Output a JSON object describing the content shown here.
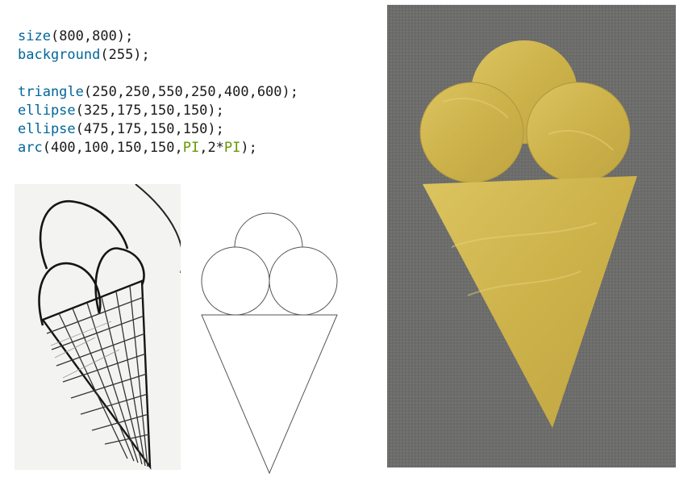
{
  "code": {
    "lines": [
      [
        {
          "t": "size",
          "c": "fn"
        },
        {
          "t": "(800,800);",
          "c": "plain"
        }
      ],
      [
        {
          "t": "background",
          "c": "fn"
        },
        {
          "t": "(255);",
          "c": "plain"
        }
      ],
      [],
      [
        {
          "t": "triangle",
          "c": "fn"
        },
        {
          "t": "(250,250,550,250,400,600);",
          "c": "plain"
        }
      ],
      [
        {
          "t": "ellipse",
          "c": "fn"
        },
        {
          "t": "(325,175,150,150);",
          "c": "plain"
        }
      ],
      [
        {
          "t": "ellipse",
          "c": "fn"
        },
        {
          "t": "(475,175,150,150);",
          "c": "plain"
        }
      ],
      [
        {
          "t": "arc",
          "c": "fn"
        },
        {
          "t": "(400,100,150,150,",
          "c": "plain"
        },
        {
          "t": "PI",
          "c": "const"
        },
        {
          "t": ",2*",
          "c": "plain"
        },
        {
          "t": "PI",
          "c": "const"
        },
        {
          "t": ");",
          "c": "plain"
        }
      ]
    ]
  },
  "colors": {
    "function": "#006699",
    "constant": "#669900",
    "fabric_background": "#6e6e6c",
    "gold": "#d2b84e",
    "sketch_ink": "#1a1a1a"
  },
  "panels": [
    {
      "kind": "pencil-sketch-photo",
      "subject": "ice-cream-cone"
    },
    {
      "kind": "code-render-output",
      "subject": "ice-cream-cone"
    },
    {
      "kind": "gold-fabric-cutout-photo",
      "subject": "ice-cream-cone"
    }
  ]
}
